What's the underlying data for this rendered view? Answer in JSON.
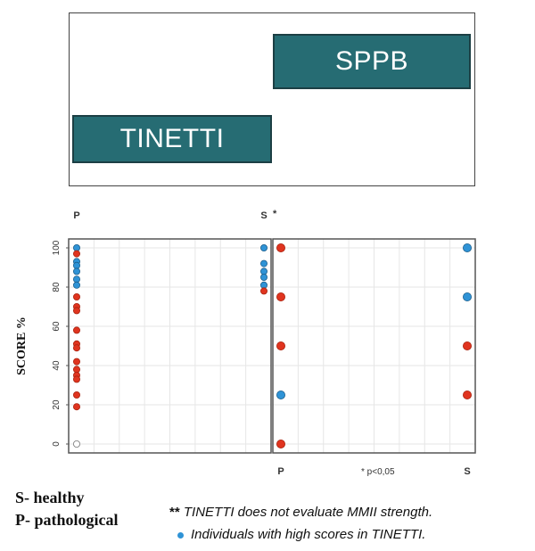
{
  "legend": {
    "sppb_label": "SPPB",
    "tinetti_label": "TINETTI",
    "sppb_color": "#266c73",
    "tinetti_color": "#266c73"
  },
  "chart_data": [
    {
      "type": "scatter",
      "title": "",
      "panel": "TINETTI",
      "categories": [
        "P",
        "S"
      ],
      "ylabel": "SCORE %",
      "ylim": [
        0,
        100
      ],
      "yticks": [
        0,
        20,
        40,
        60,
        80,
        100
      ],
      "grid": true,
      "significance_mark": "*",
      "points": [
        {
          "x": "P",
          "y": 100,
          "color": "#2f93d6"
        },
        {
          "x": "P",
          "y": 97,
          "color": "#e0341f"
        },
        {
          "x": "P",
          "y": 93,
          "color": "#2f93d6"
        },
        {
          "x": "P",
          "y": 91,
          "color": "#2f93d6"
        },
        {
          "x": "P",
          "y": 88,
          "color": "#2f93d6"
        },
        {
          "x": "P",
          "y": 84,
          "color": "#2f93d6"
        },
        {
          "x": "P",
          "y": 81,
          "color": "#2f93d6"
        },
        {
          "x": "P",
          "y": 75,
          "color": "#e0341f"
        },
        {
          "x": "P",
          "y": 70,
          "color": "#e0341f"
        },
        {
          "x": "P",
          "y": 68,
          "color": "#e0341f"
        },
        {
          "x": "P",
          "y": 58,
          "color": "#e0341f"
        },
        {
          "x": "P",
          "y": 51,
          "color": "#e0341f"
        },
        {
          "x": "P",
          "y": 49,
          "color": "#e0341f"
        },
        {
          "x": "P",
          "y": 42,
          "color": "#e0341f"
        },
        {
          "x": "P",
          "y": 38,
          "color": "#e0341f"
        },
        {
          "x": "P",
          "y": 35,
          "color": "#e0341f"
        },
        {
          "x": "P",
          "y": 33,
          "color": "#e0341f"
        },
        {
          "x": "P",
          "y": 25,
          "color": "#e0341f"
        },
        {
          "x": "P",
          "y": 19,
          "color": "#e0341f"
        },
        {
          "x": "P",
          "y": 0,
          "color": "#ffffff"
        },
        {
          "x": "S",
          "y": 100,
          "color": "#2f93d6"
        },
        {
          "x": "S",
          "y": 92,
          "color": "#2f93d6"
        },
        {
          "x": "S",
          "y": 88,
          "color": "#2f93d6"
        },
        {
          "x": "S",
          "y": 85,
          "color": "#2f93d6"
        },
        {
          "x": "S",
          "y": 81,
          "color": "#2f93d6"
        },
        {
          "x": "S",
          "y": 78,
          "color": "#e0341f"
        }
      ]
    },
    {
      "type": "scatter",
      "title": "",
      "panel": "SPPB",
      "categories": [
        "P",
        "S"
      ],
      "ylim": [
        0,
        100
      ],
      "grid": true,
      "annotation": "* p<0,05",
      "points": [
        {
          "x": "P",
          "y": 100,
          "color": "#e0341f"
        },
        {
          "x": "P",
          "y": 75,
          "color": "#e0341f"
        },
        {
          "x": "P",
          "y": 50,
          "color": "#e0341f"
        },
        {
          "x": "P",
          "y": 25,
          "color": "#2f93d6"
        },
        {
          "x": "P",
          "y": 0,
          "color": "#e0341f"
        },
        {
          "x": "S",
          "y": 100,
          "color": "#2f93d6"
        },
        {
          "x": "S",
          "y": 75,
          "color": "#2f93d6"
        },
        {
          "x": "S",
          "y": 50,
          "color": "#e0341f"
        },
        {
          "x": "S",
          "y": 25,
          "color": "#e0341f"
        }
      ]
    }
  ],
  "key": {
    "s": "S- healthy",
    "p": "P- pathological"
  },
  "notes": {
    "stars": "**",
    "tinetti_note": "TINETTI does not evaluate MMII strength.",
    "blue_note": "Individuals with high scores in TINETTI."
  },
  "colors": {
    "red": "#e0341f",
    "blue": "#2f93d6",
    "panel_border": "#555555"
  }
}
